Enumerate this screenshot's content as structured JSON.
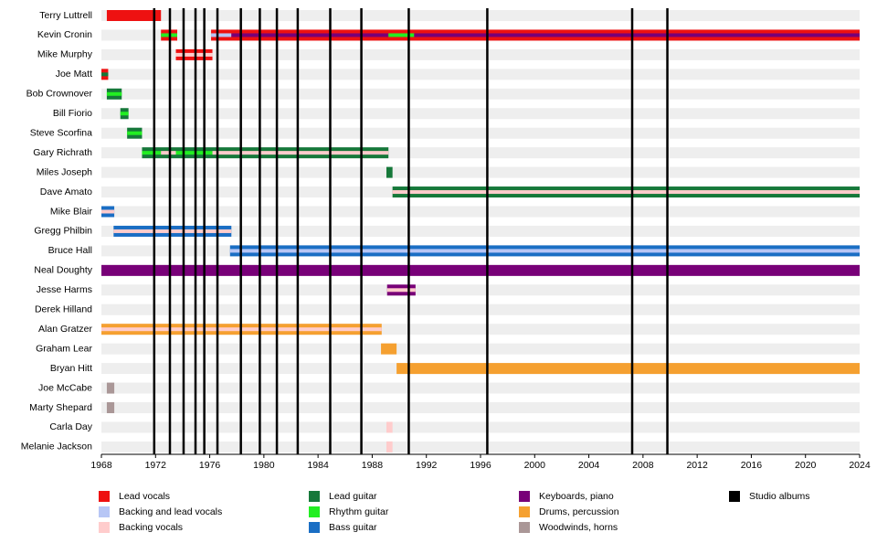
{
  "chart_data": {
    "type": "timeline",
    "xlim": [
      1968,
      2024
    ],
    "xticks": [
      1968,
      1972,
      1976,
      1980,
      1984,
      1988,
      1992,
      1996,
      2000,
      2004,
      2008,
      2012,
      2016,
      2020,
      2024
    ],
    "legend": [
      {
        "name": "Lead vocals",
        "color": "#ee1111"
      },
      {
        "name": "Backing and lead vocals",
        "color": "#b7c6f5"
      },
      {
        "name": "Backing vocals",
        "color": "#ffcccc"
      },
      {
        "name": "Lead guitar",
        "color": "#16783a"
      },
      {
        "name": "Rhythm guitar",
        "color": "#22ee22"
      },
      {
        "name": "Bass guitar",
        "color": "#1a6ec4"
      },
      {
        "name": "Keyboards, piano",
        "color": "#780078"
      },
      {
        "name": "Drums, percussion",
        "color": "#f5a030"
      },
      {
        "name": "Woodwinds, horns",
        "color": "#aa9797"
      },
      {
        "name": "Studio albums",
        "color": "#000000"
      }
    ],
    "albums": [
      1971.9,
      1973.06,
      1974.07,
      1974.95,
      1975.6,
      1976.57,
      1978.3,
      1979.7,
      1980.96,
      1982.5,
      1984.9,
      1987.2,
      1990.7,
      1996.5,
      2007.2,
      2009.8
    ],
    "members": [
      {
        "name": "Terry Luttrell",
        "bars": [
          {
            "role": "Lead vocals",
            "start": 1968.4,
            "end": 1972.4
          }
        ],
        "stripes": []
      },
      {
        "name": "Kevin Cronin",
        "bars": [
          {
            "role": "Lead vocals",
            "start": 1972.4,
            "end": 1973.6
          },
          {
            "role": "Lead vocals",
            "start": 1976.1,
            "end": 2024
          }
        ],
        "stripes": [
          {
            "role": "Rhythm guitar",
            "start": 1972.4,
            "end": 1973.6
          },
          {
            "role": "Backing and lead vocals",
            "start": 1976.1,
            "end": 1977.6
          },
          {
            "role": "Keyboards, piano",
            "start": 1977.6,
            "end": 1989.2
          },
          {
            "role": "Rhythm guitar",
            "start": 1989.2,
            "end": 1991.1
          },
          {
            "role": "Keyboards, piano",
            "start": 1991.1,
            "end": 2024
          }
        ]
      },
      {
        "name": "Mike Murphy",
        "bars": [
          {
            "role": "Lead vocals",
            "start": 1973.5,
            "end": 1976.2
          }
        ],
        "stripes": [
          {
            "role": "Backing vocals",
            "start": 1973.5,
            "end": 1976.2
          }
        ]
      },
      {
        "name": "Joe Matt",
        "bars": [
          {
            "role": "Lead vocals",
            "start": 1968,
            "end": 1968.5
          }
        ],
        "stripes": [
          {
            "role": "Lead guitar",
            "start": 1968,
            "end": 1968.5
          }
        ]
      },
      {
        "name": "Bob Crownover",
        "bars": [
          {
            "role": "Lead guitar",
            "start": 1968.4,
            "end": 1969.5
          }
        ],
        "stripes": [
          {
            "role": "Rhythm guitar",
            "start": 1968.4,
            "end": 1969.5
          }
        ]
      },
      {
        "name": "Bill Fiorio",
        "bars": [
          {
            "role": "Lead guitar",
            "start": 1969.4,
            "end": 1970
          }
        ],
        "stripes": [
          {
            "role": "Rhythm guitar",
            "start": 1969.4,
            "end": 1970
          }
        ]
      },
      {
        "name": "Steve Scorfina",
        "bars": [
          {
            "role": "Lead guitar",
            "start": 1969.9,
            "end": 1971
          }
        ],
        "stripes": [
          {
            "role": "Rhythm guitar",
            "start": 1969.9,
            "end": 1971
          }
        ]
      },
      {
        "name": "Gary Richrath",
        "bars": [
          {
            "role": "Lead guitar",
            "start": 1971,
            "end": 1989.2
          }
        ],
        "stripes": [
          {
            "role": "Rhythm guitar",
            "start": 1971,
            "end": 1972.4
          },
          {
            "role": "Backing vocals",
            "start": 1972.4,
            "end": 1973.5
          },
          {
            "role": "Rhythm guitar",
            "start": 1973.5,
            "end": 1976.2
          },
          {
            "role": "Backing vocals",
            "start": 1976.2,
            "end": 1989.2
          }
        ]
      },
      {
        "name": "Miles Joseph",
        "bars": [
          {
            "role": "Lead guitar",
            "start": 1989.05,
            "end": 1989.5
          }
        ],
        "stripes": []
      },
      {
        "name": "Dave Amato",
        "bars": [
          {
            "role": "Lead guitar",
            "start": 1989.5,
            "end": 2024
          }
        ],
        "stripes": [
          {
            "role": "Backing vocals",
            "start": 1989.5,
            "end": 2024
          }
        ]
      },
      {
        "name": "Mike Blair",
        "bars": [
          {
            "role": "Bass guitar",
            "start": 1968,
            "end": 1968.95
          }
        ],
        "stripes": [
          {
            "role": "Backing vocals",
            "start": 1968,
            "end": 1968.95
          }
        ]
      },
      {
        "name": "Gregg Philbin",
        "bars": [
          {
            "role": "Bass guitar",
            "start": 1968.9,
            "end": 1977.6
          }
        ],
        "stripes": [
          {
            "role": "Backing vocals",
            "start": 1968.9,
            "end": 1977.6
          }
        ]
      },
      {
        "name": "Bruce Hall",
        "bars": [
          {
            "role": "Bass guitar",
            "start": 1977.5,
            "end": 2024
          }
        ],
        "stripes": [
          {
            "role": "Backing and lead vocals",
            "start": 1977.5,
            "end": 2024
          }
        ]
      },
      {
        "name": "Neal Doughty",
        "bars": [
          {
            "role": "Keyboards, piano",
            "start": 1968,
            "end": 2024
          }
        ],
        "stripes": []
      },
      {
        "name": "Jesse Harms",
        "bars": [
          {
            "role": "Keyboards, piano",
            "start": 1989.1,
            "end": 1991.2
          }
        ],
        "stripes": [
          {
            "role": "Backing vocals",
            "start": 1989.1,
            "end": 1991.2
          }
        ]
      },
      {
        "name": "Derek Hilland",
        "bars": [],
        "stripes": []
      },
      {
        "name": "Alan Gratzer",
        "bars": [
          {
            "role": "Drums, percussion",
            "start": 1968,
            "end": 1988.7
          }
        ],
        "stripes": [
          {
            "role": "Backing vocals",
            "start": 1968,
            "end": 1988.7
          }
        ]
      },
      {
        "name": "Graham Lear",
        "bars": [
          {
            "role": "Drums, percussion",
            "start": 1988.65,
            "end": 1989.8
          }
        ],
        "stripes": []
      },
      {
        "name": "Bryan Hitt",
        "bars": [
          {
            "role": "Drums, percussion",
            "start": 1989.8,
            "end": 2024
          }
        ],
        "stripes": []
      },
      {
        "name": "Joe McCabe",
        "bars": [
          {
            "role": "Woodwinds, horns",
            "start": 1968.4,
            "end": 1968.95
          }
        ],
        "stripes": []
      },
      {
        "name": "Marty Shepard",
        "bars": [
          {
            "role": "Woodwinds, horns",
            "start": 1968.4,
            "end": 1968.95
          }
        ],
        "stripes": []
      },
      {
        "name": "Carla Day",
        "bars": [
          {
            "role": "Backing vocals",
            "start": 1989.05,
            "end": 1989.5
          }
        ],
        "stripes": []
      },
      {
        "name": "Melanie Jackson",
        "bars": [
          {
            "role": "Backing vocals",
            "start": 1989.05,
            "end": 1989.5
          }
        ],
        "stripes": []
      }
    ]
  }
}
